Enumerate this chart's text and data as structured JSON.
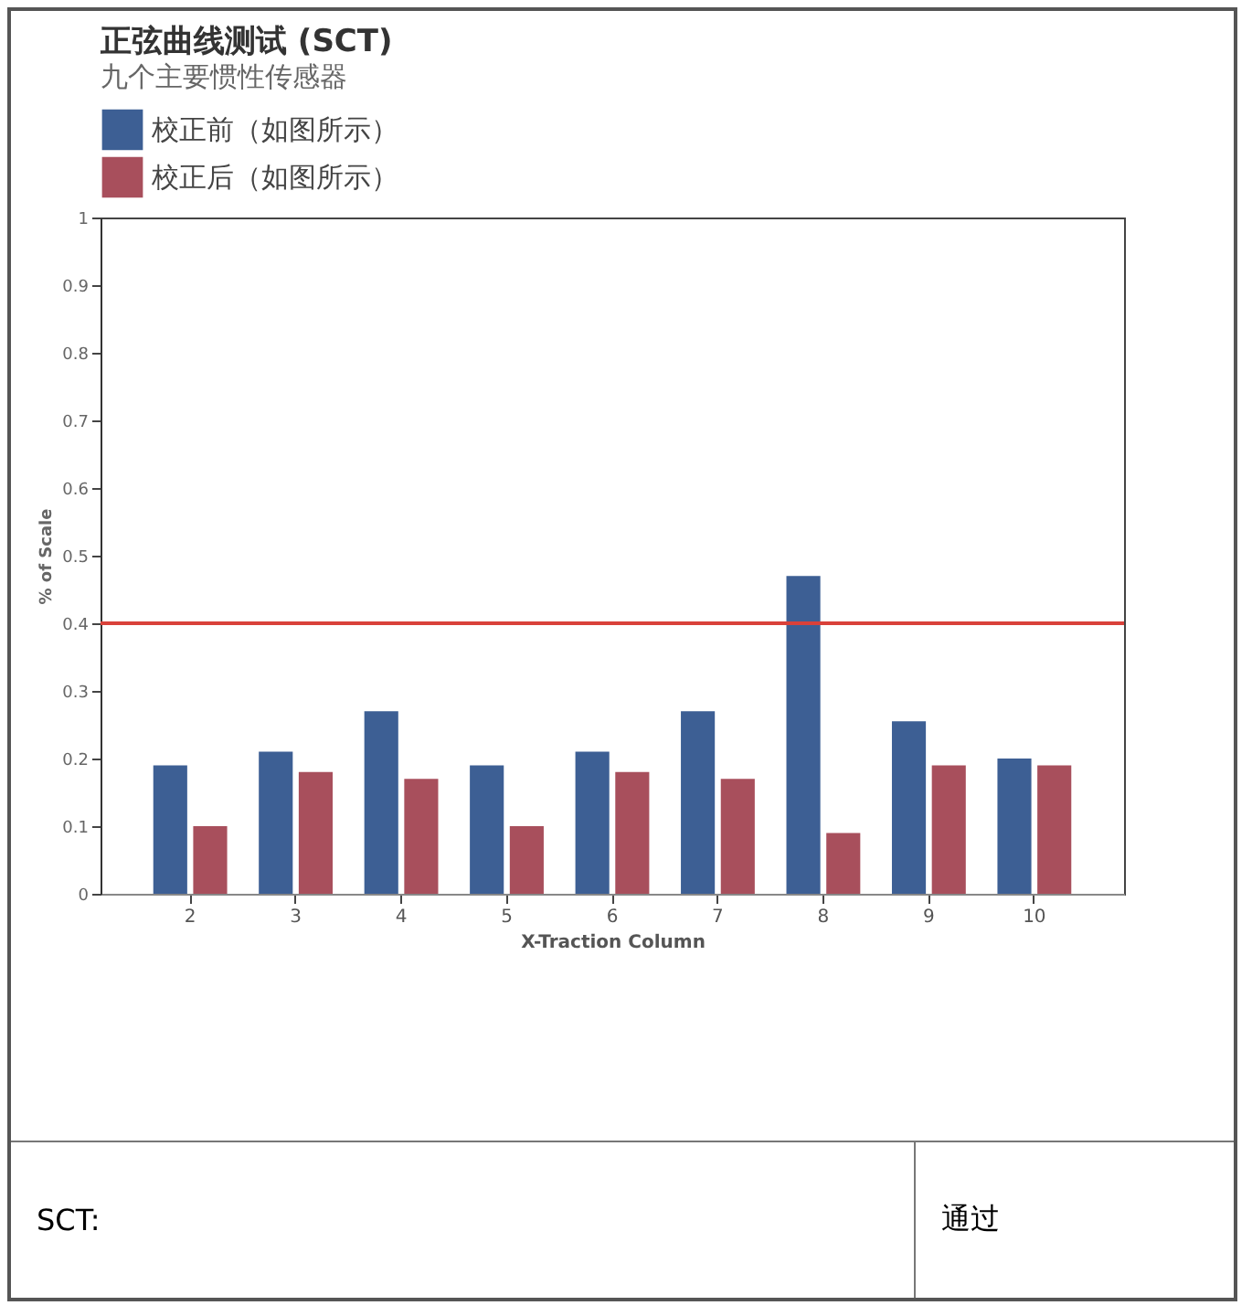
{
  "chart_data": {
    "type": "bar",
    "title": "正弦曲线测试 (SCT)",
    "subtitle": "九个主要惯性传感器",
    "xlabel": "X-Traction Column",
    "ylabel": "% of Scale",
    "categories": [
      "2",
      "3",
      "4",
      "5",
      "6",
      "7",
      "8",
      "9",
      "10"
    ],
    "series": [
      {
        "name": "校正前（如图所示）",
        "color": "#3d5f94",
        "values": [
          0.19,
          0.21,
          0.27,
          0.19,
          0.21,
          0.27,
          0.47,
          0.255,
          0.2
        ]
      },
      {
        "name": "校正后（如图所示）",
        "color": "#a84f5c",
        "values": [
          0.1,
          0.18,
          0.17,
          0.1,
          0.18,
          0.17,
          0.09,
          0.19,
          0.19
        ]
      }
    ],
    "ylim": [
      0,
      1
    ],
    "yticks": [
      0,
      0.1,
      0.2,
      0.3,
      0.4,
      0.5,
      0.6,
      0.7,
      0.8,
      0.9,
      1
    ],
    "ref_lines": [
      {
        "axis": "y",
        "value": 0.4,
        "color": "#d9413a"
      }
    ],
    "legend": "top left",
    "grid": false,
    "annotations": [
      "SCT:",
      "通过"
    ]
  }
}
